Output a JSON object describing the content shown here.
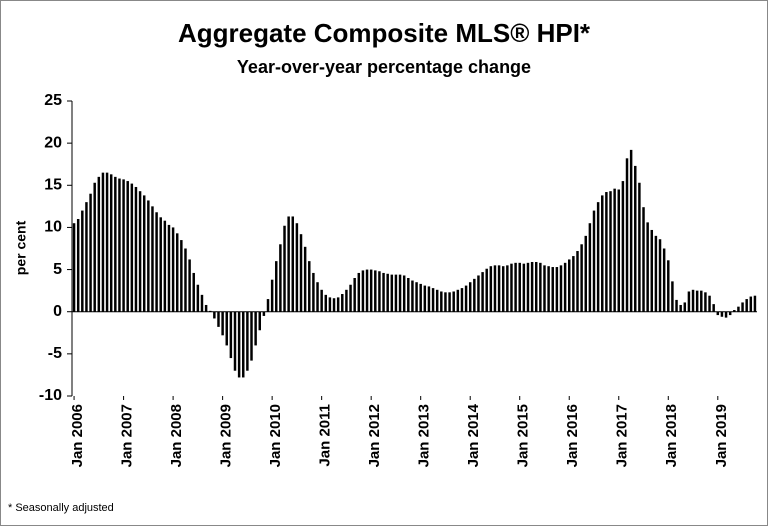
{
  "chart_data": {
    "type": "bar",
    "title": "Aggregate Composite MLS® HPI*",
    "subtitle": "Year-over-year percentage change",
    "y_label": "per cent",
    "footnote": "* Seasonally adjusted",
    "color": "#000000",
    "ylim": [
      -10,
      25
    ],
    "yticks": [
      -10,
      -5,
      0,
      5,
      10,
      15,
      20,
      25
    ],
    "categories": [
      "Jan 2006",
      null,
      null,
      null,
      null,
      null,
      null,
      null,
      null,
      null,
      null,
      null,
      "Jan 2007",
      null,
      null,
      null,
      null,
      null,
      null,
      null,
      null,
      null,
      null,
      null,
      "Jan 2008",
      null,
      null,
      null,
      null,
      null,
      null,
      null,
      null,
      null,
      null,
      null,
      "Jan 2009",
      null,
      null,
      null,
      null,
      null,
      null,
      null,
      null,
      null,
      null,
      null,
      "Jan 2010",
      null,
      null,
      null,
      null,
      null,
      null,
      null,
      null,
      null,
      null,
      null,
      "Jan 2011",
      null,
      null,
      null,
      null,
      null,
      null,
      null,
      null,
      null,
      null,
      null,
      "Jan 2012",
      null,
      null,
      null,
      null,
      null,
      null,
      null,
      null,
      null,
      null,
      null,
      "Jan 2013",
      null,
      null,
      null,
      null,
      null,
      null,
      null,
      null,
      null,
      null,
      null,
      "Jan 2014",
      null,
      null,
      null,
      null,
      null,
      null,
      null,
      null,
      null,
      null,
      null,
      "Jan 2015",
      null,
      null,
      null,
      null,
      null,
      null,
      null,
      null,
      null,
      null,
      null,
      "Jan 2016",
      null,
      null,
      null,
      null,
      null,
      null,
      null,
      null,
      null,
      null,
      null,
      "Jan 2017",
      null,
      null,
      null,
      null,
      null,
      null,
      null,
      null,
      null,
      null,
      null,
      "Jan 2018",
      null,
      null,
      null,
      null,
      null,
      null,
      null,
      null,
      null,
      null,
      null,
      "Jan 2019",
      null,
      null,
      null,
      null,
      null,
      null,
      null,
      null,
      null
    ],
    "values": [
      10.5,
      11,
      12,
      13,
      14,
      15.3,
      16,
      16.5,
      16.5,
      16.3,
      16,
      15.8,
      15.7,
      15.5,
      15.2,
      14.8,
      14.3,
      13.8,
      13.2,
      12.5,
      11.8,
      11.2,
      10.8,
      10.3,
      10,
      9.3,
      8.5,
      7.5,
      6.2,
      4.6,
      3.2,
      2,
      0.8,
      0.1,
      -0.8,
      -1.8,
      -2.8,
      -4,
      -5.5,
      -7,
      -7.8,
      -7.8,
      -7,
      -5.8,
      -4,
      -2.2,
      -0.5,
      1.5,
      3.8,
      6,
      8,
      10.2,
      11.3,
      11.3,
      10.5,
      9.2,
      7.7,
      6,
      4.6,
      3.5,
      2.6,
      2,
      1.7,
      1.6,
      1.7,
      2.1,
      2.6,
      3.2,
      4,
      4.6,
      4.9,
      5,
      5,
      4.9,
      4.8,
      4.6,
      4.5,
      4.4,
      4.4,
      4.4,
      4.3,
      4,
      3.7,
      3.5,
      3.3,
      3.1,
      3,
      2.8,
      2.6,
      2.4,
      2.3,
      2.3,
      2.4,
      2.6,
      2.8,
      3.1,
      3.5,
      3.9,
      4.3,
      4.7,
      5.1,
      5.4,
      5.5,
      5.5,
      5.4,
      5.5,
      5.7,
      5.8,
      5.8,
      5.7,
      5.8,
      5.9,
      5.9,
      5.8,
      5.5,
      5.4,
      5.3,
      5.3,
      5.5,
      5.8,
      6.2,
      6.6,
      7.2,
      8,
      9,
      10.5,
      12,
      13,
      13.8,
      14.2,
      14.3,
      14.6,
      14.5,
      15.5,
      18.2,
      19.2,
      17.3,
      15.3,
      12.4,
      10.6,
      9.7,
      9,
      8.6,
      7.5,
      6.1,
      3.6,
      1.4,
      0.8,
      1.1,
      2.4,
      2.6,
      2.5,
      2.5,
      2.3,
      1.9,
      0.9,
      -0.4,
      -0.6,
      -0.7,
      -0.4,
      0.2,
      0.6,
      1.1,
      1.5,
      1.8,
      1.9
    ]
  }
}
